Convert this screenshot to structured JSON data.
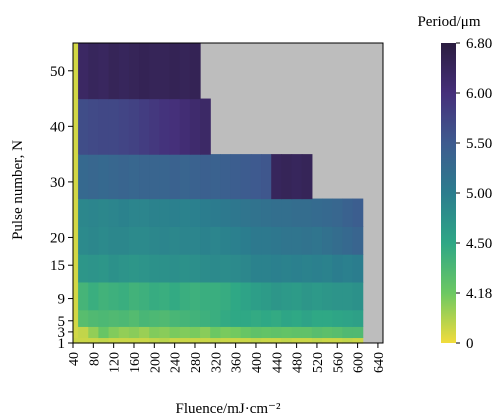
{
  "chart_data": {
    "type": "heatmap",
    "xlabel": "Fluence/mJ·cm⁻²",
    "ylabel": "Pulse number, N",
    "xticks": [
      "40",
      "80",
      "120",
      "160",
      "200",
      "240",
      "280",
      "320",
      "360",
      "400",
      "440",
      "480",
      "520",
      "560",
      "600",
      "640"
    ],
    "yticks": [
      "1",
      "3",
      "5",
      "9",
      "15",
      "20",
      "30",
      "40",
      "50"
    ],
    "xlim": [
      40,
      650
    ],
    "ylim": [
      1,
      55
    ],
    "colorbar": {
      "title": "Period/μm",
      "ticks": [
        "6.80",
        "6.00",
        "5.50",
        "5.00",
        "4.50",
        "4.18",
        "0"
      ],
      "stops": [
        "#f2dc3c",
        "#6cc862",
        "#2ea786",
        "#2b7d8e",
        "#3e5b8f",
        "#452f7a",
        "#2b1d40"
      ]
    },
    "background_color": "#bdbdbd",
    "x_bins": [
      40,
      50,
      70,
      90,
      110,
      130,
      150,
      170,
      190,
      210,
      230,
      250,
      270,
      290,
      310,
      330,
      350,
      370,
      390,
      410,
      430,
      450,
      470,
      490,
      510,
      530,
      550,
      570,
      590,
      610
    ],
    "rows": [
      {
        "y": [
          1,
          2
        ],
        "values": [
          0.05,
          0.05,
          0.05,
          0.06,
          0.05,
          0.05,
          0.05,
          0.05,
          0.06,
          0.07,
          0.05,
          0.05,
          0.05,
          0.05,
          0.06,
          0.05,
          0.05,
          0.05,
          0.06,
          0.05,
          0.05,
          0.06,
          0.05,
          0.05,
          0.06,
          0.05,
          0.05,
          0.06,
          0.05
        ]
      },
      {
        "y": [
          2,
          4
        ],
        "values": [
          0.04,
          0.06,
          0.12,
          0.18,
          0.14,
          0.12,
          0.13,
          0.11,
          0.14,
          0.13,
          0.15,
          0.14,
          0.15,
          0.13,
          0.17,
          0.15,
          0.16,
          0.18,
          0.2,
          0.19,
          0.2,
          0.19,
          0.2,
          0.2,
          0.22,
          0.21,
          0.22,
          0.24,
          0.24
        ]
      },
      {
        "y": [
          4,
          7
        ],
        "values": [
          0.04,
          0.22,
          0.24,
          0.25,
          0.24,
          0.25,
          0.23,
          0.26,
          0.25,
          0.24,
          0.26,
          0.27,
          0.28,
          0.29,
          0.3,
          0.32,
          0.33,
          0.33,
          0.32,
          0.33,
          0.32,
          0.34,
          0.33,
          0.35,
          0.33,
          0.33,
          0.34,
          0.35,
          0.36
        ]
      },
      {
        "y": [
          7,
          12
        ],
        "values": [
          0.04,
          0.27,
          0.3,
          0.28,
          0.29,
          0.3,
          0.28,
          0.29,
          0.31,
          0.3,
          0.32,
          0.3,
          0.29,
          0.3,
          0.3,
          0.31,
          0.33,
          0.35,
          0.37,
          0.38,
          0.4,
          0.39,
          0.38,
          0.4,
          0.39,
          0.4,
          0.41,
          0.41,
          0.42
        ]
      },
      {
        "y": [
          12,
          17
        ],
        "values": [
          0.04,
          0.4,
          0.41,
          0.4,
          0.42,
          0.41,
          0.4,
          0.41,
          0.42,
          0.42,
          0.43,
          0.42,
          0.43,
          0.44,
          0.45,
          0.44,
          0.45,
          0.46,
          0.48,
          0.48,
          0.49,
          0.48,
          0.49,
          0.48,
          0.49,
          0.48,
          0.5,
          0.49,
          0.5
        ]
      },
      {
        "y": [
          17,
          22
        ],
        "values": [
          0.04,
          0.45,
          0.46,
          0.45,
          0.46,
          0.46,
          0.45,
          0.45,
          0.46,
          0.47,
          0.46,
          0.47,
          0.47,
          0.48,
          0.47,
          0.48,
          0.49,
          0.5,
          0.52,
          0.52,
          0.53,
          0.54,
          0.54,
          0.55,
          0.54,
          0.56,
          0.58,
          0.6,
          0.62
        ]
      },
      {
        "y": [
          22,
          27
        ],
        "values": [
          0.04,
          0.46,
          0.47,
          0.46,
          0.47,
          0.48,
          0.47,
          0.47,
          0.48,
          0.48,
          0.49,
          0.48,
          0.49,
          0.5,
          0.51,
          0.52,
          0.53,
          0.54,
          0.55,
          0.56,
          0.57,
          0.57,
          0.58,
          0.58,
          0.59,
          0.6,
          0.61,
          0.63,
          0.65
        ]
      },
      {
        "y": [
          27,
          35
        ],
        "values": [
          0.04,
          0.6,
          0.61,
          0.6,
          0.61,
          0.62,
          0.61,
          0.62,
          0.62,
          0.62,
          0.63,
          0.62,
          0.63,
          0.64,
          0.63,
          0.64,
          0.65,
          0.66,
          0.67,
          0.68,
          0.92,
          0.93,
          0.92,
          0.93,
          null,
          null,
          null,
          null,
          null
        ]
      },
      {
        "y": [
          35,
          45
        ],
        "values": [
          0.04,
          0.72,
          0.73,
          0.74,
          0.74,
          0.75,
          0.76,
          0.78,
          0.8,
          0.82,
          0.83,
          0.85,
          0.87,
          0.89,
          null,
          null,
          null,
          null,
          null,
          null,
          null,
          null,
          null,
          null,
          null,
          null,
          null,
          null,
          null
        ]
      },
      {
        "y": [
          45,
          55
        ],
        "values": [
          0.04,
          0.9,
          0.92,
          0.91,
          0.93,
          0.92,
          0.93,
          0.94,
          0.93,
          0.93,
          0.94,
          0.93,
          0.94,
          null,
          null,
          null,
          null,
          null,
          null,
          null,
          null,
          null,
          null,
          null,
          null,
          null,
          null,
          null,
          null
        ]
      }
    ]
  }
}
